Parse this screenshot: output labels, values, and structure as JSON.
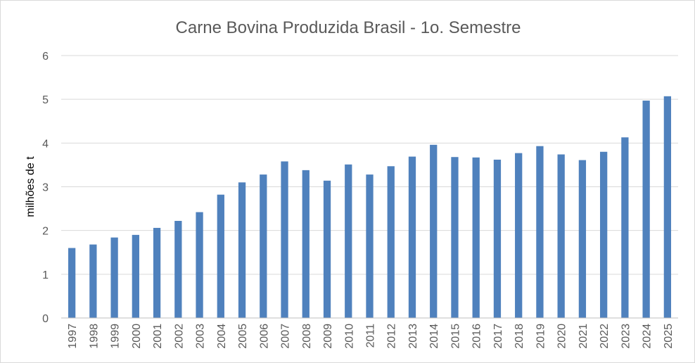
{
  "chart_data": {
    "type": "bar",
    "title": "Carne Bovina Produzida Brasil - 1o. Semestre",
    "xlabel": "",
    "ylabel": "milhões de t",
    "ylim": [
      0,
      6
    ],
    "yticks": [
      "0",
      "1",
      "2",
      "3",
      "4",
      "5",
      "6"
    ],
    "grid": true,
    "legend": "none",
    "bar_color": "#4f81bd",
    "categories": [
      "1997",
      "1998",
      "1999",
      "2000",
      "2001",
      "2002",
      "2003",
      "2004",
      "2005",
      "2006",
      "2007",
      "2008",
      "2009",
      "2010",
      "2011",
      "2012",
      "2013",
      "2014",
      "2015",
      "2016",
      "2017",
      "2018",
      "2019",
      "2020",
      "2021",
      "2022",
      "2023",
      "2024",
      "2025"
    ],
    "values": [
      1.6,
      1.68,
      1.84,
      1.9,
      2.06,
      2.22,
      2.42,
      2.82,
      3.1,
      3.28,
      3.58,
      3.38,
      3.14,
      3.51,
      3.28,
      3.47,
      3.69,
      3.96,
      3.68,
      3.67,
      3.62,
      3.77,
      3.93,
      3.74,
      3.61,
      3.8,
      4.13,
      4.97,
      5.07
    ]
  }
}
